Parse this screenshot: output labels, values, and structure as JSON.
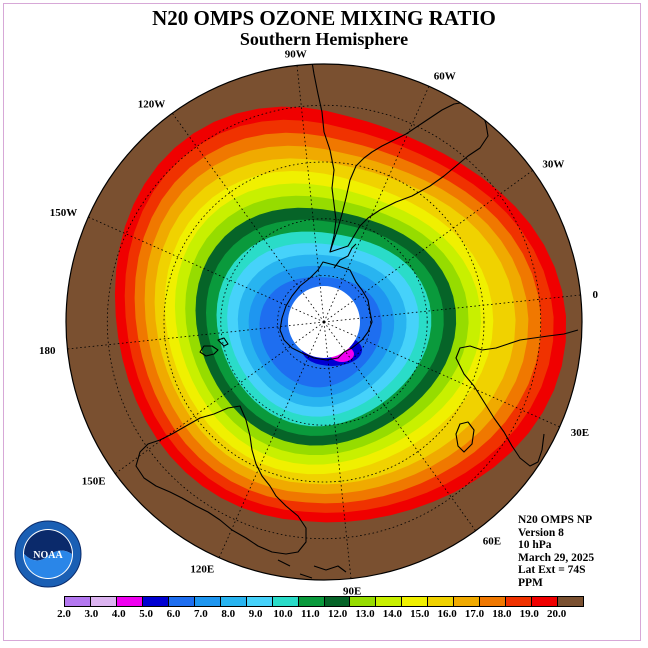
{
  "title": "N20 OMPS OZONE MIXING RATIO",
  "subtitle": "Southern Hemisphere",
  "longitude_labels": [
    "90W",
    "60W",
    "30W",
    "0",
    "30E",
    "60E",
    "90E",
    "120E",
    "150E",
    "180",
    "150W",
    "120W"
  ],
  "info": {
    "instrument": "N20 OMPS NP",
    "version": "Version 8",
    "pressure": "10 hPa",
    "date": "March 29, 2025",
    "lat_ext": "Lat Ext = 74S",
    "units": "PPM"
  },
  "logo": {
    "text": "NOAA",
    "ring_text": "NATIONAL OCEANIC AND ATMOSPHERIC ADMINISTRATION · U.S. DEPARTMENT OF COMMERCE"
  },
  "colorbar": {
    "ticks": [
      "2.0",
      "3.0",
      "4.0",
      "5.0",
      "6.0",
      "7.0",
      "8.0",
      "9.0",
      "10.0",
      "11.0",
      "12.0",
      "13.0",
      "14.0",
      "15.0",
      "16.0",
      "17.0",
      "18.0",
      "19.0",
      "20.0"
    ],
    "colors": [
      "#b478f0",
      "#dcb4f0",
      "#f000f0",
      "#0000d2",
      "#1e6ef0",
      "#1e96f0",
      "#28b4f0",
      "#46d2fa",
      "#2adcc8",
      "#0a9a3c",
      "#066428",
      "#96dc00",
      "#c8f000",
      "#f0f000",
      "#f0d200",
      "#f0aa00",
      "#f07800",
      "#f03200",
      "#f00000",
      "#7a5030"
    ]
  },
  "field": {
    "background_color": "#7a5030",
    "pole_color": "#ffffff",
    "bands": [
      {
        "value": 19.0,
        "color": "#f00000"
      },
      {
        "value": 18.0,
        "color": "#f03200"
      },
      {
        "value": 17.0,
        "color": "#f07800"
      },
      {
        "value": 16.0,
        "color": "#f0aa00"
      },
      {
        "value": 15.0,
        "color": "#f0d200"
      },
      {
        "value": 14.0,
        "color": "#f0f000"
      },
      {
        "value": 13.0,
        "color": "#c8f000"
      },
      {
        "value": 12.0,
        "color": "#96dc00"
      },
      {
        "value": 11.0,
        "color": "#066428"
      },
      {
        "value": 10.0,
        "color": "#0a9a3c"
      },
      {
        "value": 9.0,
        "color": "#2adcc8"
      },
      {
        "value": 8.0,
        "color": "#46d2fa"
      },
      {
        "value": 7.0,
        "color": "#28b4f0"
      },
      {
        "value": 6.0,
        "color": "#1e96f0"
      },
      {
        "value": 5.0,
        "color": "#1e6ef0"
      }
    ],
    "low_patches": [
      {
        "value": 4.0,
        "color": "#0000d2"
      },
      {
        "value": 3.0,
        "color": "#f000f0"
      }
    ]
  }
}
